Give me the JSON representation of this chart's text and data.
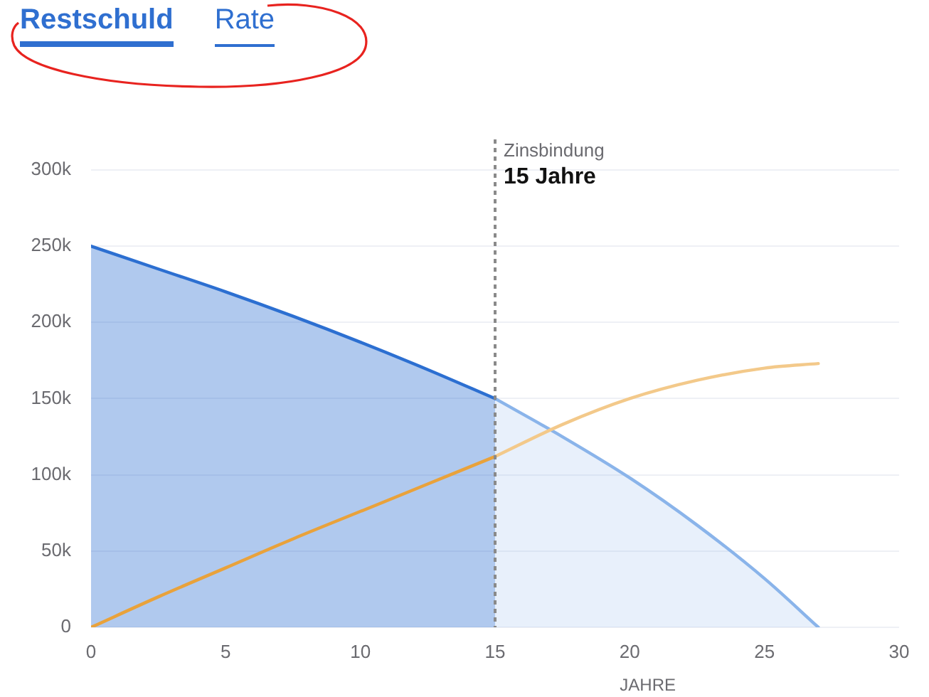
{
  "chart_data": {
    "type": "area",
    "xlabel": "JAHRE",
    "annotations": [
      "Restschuld",
      "Rate"
    ],
    "series": [
      {
        "color": "#2c6fd1",
        "x": [
          0,
          2.5,
          5,
          7.5,
          10,
          12.5,
          15
        ],
        "values": [
          250000,
          235000,
          220000,
          204000,
          187000,
          169000,
          150000
        ]
      },
      {
        "color": "#8ab4ea",
        "x": [
          15,
          17.5,
          20,
          22.5,
          25,
          27
        ],
        "values": [
          150000,
          125000,
          98000,
          67000,
          32000,
          0
        ]
      },
      {
        "type": "line",
        "color": "#e9a23b",
        "x": [
          0,
          2.5,
          5,
          7.5,
          10,
          12.5,
          15
        ],
        "values": [
          0,
          20000,
          39000,
          58000,
          76000,
          94000,
          112000
        ]
      },
      {
        "type": "line",
        "color": "#f3c98a",
        "x": [
          15,
          17.5,
          20,
          22.5,
          25,
          27
        ],
        "values": [
          112000,
          133000,
          150000,
          162000,
          170000,
          173000
        ]
      }
    ],
    "xlim": [
      0,
      30
    ],
    "xticks": [
      0,
      5,
      10,
      15,
      20,
      25,
      30
    ],
    "ylim": [
      0,
      320000
    ],
    "yticks": [
      0,
      {
        "value": 50000,
        "label": "50k"
      },
      {
        "value": 100000,
        "label": "100k"
      },
      {
        "value": 150000,
        "label": "150k"
      },
      {
        "value": 200000,
        "label": "200k"
      },
      {
        "value": 250000,
        "label": "250k"
      },
      {
        "value": 300000,
        "label": "300k"
      }
    ],
    "ref_lines": [
      {
        "axis": "x",
        "value": 15,
        "label": "Zinsbindung\n15 Jahre",
        "color": "#8a8a8a",
        "line_style": "dashed"
      }
    ],
    "grid": "y",
    "legend": false,
    "marker": "none"
  }
}
